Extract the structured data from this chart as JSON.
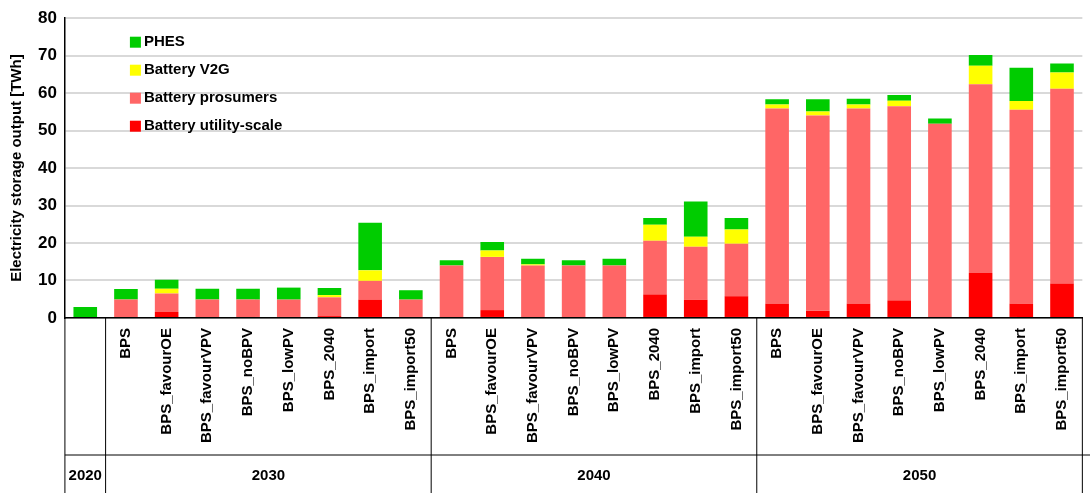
{
  "chart_data": {
    "type": "bar",
    "stacked": true,
    "ylabel": "Electricity storage output [TWh]",
    "categories": [
      null,
      "BPS",
      "BPS_favourOE",
      "BPS_favourVPV",
      "BPS_noBPV",
      "BPS_lowPV",
      "BPS_2040",
      "BPS_import",
      "BPS_import50",
      "BPS",
      "BPS_favourOE",
      "BPS_favourVPV",
      "BPS_noBPV",
      "BPS_lowPV",
      "BPS_2040",
      "BPS_import",
      "BPS_import50",
      "BPS",
      "BPS_favourOE",
      "BPS_favourVPV",
      "BPS_noBPV",
      "BPS_lowPV",
      "BPS_2040",
      "BPS_import",
      "BPS_import50"
    ],
    "series": [
      {
        "name": "Battery utility-scale",
        "color": "#ff0000",
        "values": [
          0,
          0,
          1.6,
          0,
          0,
          0,
          0.5,
          4.9,
          0,
          0,
          2.1,
          0,
          0,
          0,
          6.3,
          4.9,
          5.8,
          3.8,
          1.9,
          3.8,
          4.7,
          0,
          12.0,
          3.8,
          9.2
        ]
      },
      {
        "name": "Battery prosumers",
        "color": "#ff6666",
        "values": [
          0,
          4.9,
          4.9,
          4.9,
          4.9,
          4.9,
          5.0,
          5.0,
          4.9,
          14.0,
          14.2,
          14.0,
          14.0,
          14.0,
          14.3,
          14.1,
          14.0,
          52.1,
          52.1,
          52.1,
          51.8,
          51.8,
          50.4,
          51.8,
          52.0
        ]
      },
      {
        "name": "Battery V2G",
        "color": "#ffff00",
        "values": [
          0,
          0,
          1.3,
          0,
          0,
          0,
          0.6,
          2.8,
          0,
          0,
          1.7,
          0.3,
          0,
          0,
          4.3,
          2.7,
          3.8,
          1.1,
          1.1,
          1.1,
          1.5,
          0,
          4.9,
          2.3,
          4.3
        ]
      },
      {
        "name": "PHES",
        "color": "#00cc00",
        "values": [
          2.9,
          2.8,
          2.4,
          2.9,
          2.9,
          3.2,
          1.9,
          12.7,
          2.5,
          1.4,
          2.3,
          1.5,
          1.4,
          1.8,
          1.8,
          9.4,
          3.1,
          1.4,
          3.3,
          1.5,
          1.5,
          1.4,
          2.9,
          8.9,
          2.4
        ]
      }
    ],
    "ylim": [
      0,
      80
    ],
    "yticks": [
      0,
      10,
      20,
      30,
      40,
      50,
      60,
      70,
      80
    ],
    "grid": "y",
    "legend": "top left",
    "annotations": [
      "2020",
      "2030",
      "2040",
      "2050"
    ]
  }
}
